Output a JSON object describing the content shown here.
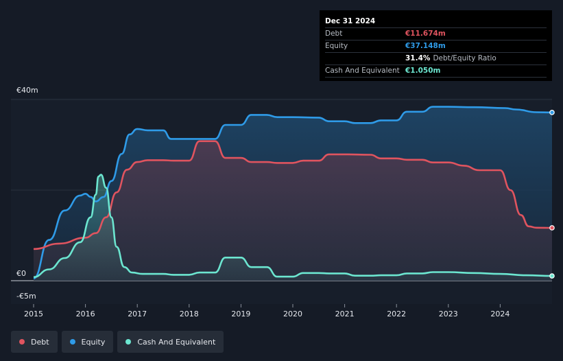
{
  "tooltip": {
    "date": "Dec 31 2024",
    "rows": [
      {
        "label": "Debt",
        "value": "€11.674m",
        "color": "#e0545f"
      },
      {
        "label": "Equity",
        "value": "€37.148m",
        "color": "#2f9be8"
      },
      {
        "label": "",
        "value": "31.4%",
        "desc": "Debt/Equity Ratio",
        "color": "#ffffff"
      },
      {
        "label": "Cash And Equivalent",
        "value": "€1.050m",
        "color": "#6ce6d0"
      }
    ]
  },
  "legend": [
    {
      "label": "Debt",
      "color": "#e0545f"
    },
    {
      "label": "Equity",
      "color": "#2f9be8"
    },
    {
      "label": "Cash And Equivalent",
      "color": "#6ce6d0"
    }
  ],
  "chart_data": {
    "type": "area",
    "y_tick_labels": [
      "€40m",
      "€0",
      "-€5m"
    ],
    "y_ticks": [
      40,
      0,
      -5
    ],
    "ylim": [
      -5,
      40
    ],
    "x_tick_labels": [
      "2015",
      "2016",
      "2017",
      "2018",
      "2019",
      "2020",
      "2021",
      "2022",
      "2023",
      "2024"
    ],
    "x_ticks": [
      2015,
      2016,
      2017,
      2018,
      2019,
      2020,
      2021,
      2022,
      2023,
      2024
    ],
    "xlim": [
      2014.6,
      2025
    ],
    "series": [
      {
        "name": "Equity",
        "color": "#2f9be8",
        "points": [
          [
            2015.0,
            0.5
          ],
          [
            2015.3,
            9
          ],
          [
            2015.6,
            15.5
          ],
          [
            2015.9,
            18.8
          ],
          [
            2016.0,
            19.2
          ],
          [
            2016.1,
            18.5
          ],
          [
            2016.2,
            17.5
          ],
          [
            2016.35,
            18.5
          ],
          [
            2016.5,
            22
          ],
          [
            2016.7,
            28
          ],
          [
            2016.85,
            32.3
          ],
          [
            2017.0,
            33.5
          ],
          [
            2017.2,
            33.2
          ],
          [
            2017.5,
            33.2
          ],
          [
            2017.65,
            31.3
          ],
          [
            2018.0,
            31.3
          ],
          [
            2018.2,
            31.3
          ],
          [
            2018.5,
            31.3
          ],
          [
            2018.7,
            34.4
          ],
          [
            2019.0,
            34.4
          ],
          [
            2019.2,
            36.6
          ],
          [
            2019.5,
            36.6
          ],
          [
            2019.7,
            36.1
          ],
          [
            2020.0,
            36.1
          ],
          [
            2020.5,
            36.0
          ],
          [
            2020.7,
            35.2
          ],
          [
            2021.0,
            35.2
          ],
          [
            2021.2,
            34.8
          ],
          [
            2021.5,
            34.8
          ],
          [
            2021.7,
            35.4
          ],
          [
            2022.0,
            35.4
          ],
          [
            2022.2,
            37.3
          ],
          [
            2022.5,
            37.3
          ],
          [
            2022.7,
            38.4
          ],
          [
            2023.0,
            38.4
          ],
          [
            2023.5,
            38.3
          ],
          [
            2024.1,
            38.1
          ],
          [
            2024.3,
            37.8
          ],
          [
            2024.7,
            37.2
          ],
          [
            2025.0,
            37.148
          ]
        ]
      },
      {
        "name": "Debt",
        "color": "#e0545f",
        "points": [
          [
            2015.0,
            7
          ],
          [
            2015.5,
            8.2
          ],
          [
            2016.0,
            9.5
          ],
          [
            2016.2,
            10.5
          ],
          [
            2016.4,
            14
          ],
          [
            2016.6,
            19.5
          ],
          [
            2016.8,
            24.5
          ],
          [
            2017.0,
            26.2
          ],
          [
            2017.2,
            26.6
          ],
          [
            2017.5,
            26.6
          ],
          [
            2017.7,
            26.5
          ],
          [
            2018.0,
            26.5
          ],
          [
            2018.2,
            30.8
          ],
          [
            2018.5,
            30.8
          ],
          [
            2018.7,
            27.1
          ],
          [
            2019.0,
            27.1
          ],
          [
            2019.2,
            26.2
          ],
          [
            2019.5,
            26.2
          ],
          [
            2019.7,
            26.0
          ],
          [
            2020.0,
            26.0
          ],
          [
            2020.2,
            26.5
          ],
          [
            2020.5,
            26.5
          ],
          [
            2020.7,
            27.9
          ],
          [
            2021.0,
            27.9
          ],
          [
            2021.5,
            27.8
          ],
          [
            2021.7,
            27.0
          ],
          [
            2022.0,
            27.0
          ],
          [
            2022.2,
            26.7
          ],
          [
            2022.5,
            26.7
          ],
          [
            2022.7,
            26.1
          ],
          [
            2023.0,
            26.1
          ],
          [
            2023.3,
            25.4
          ],
          [
            2023.6,
            24.4
          ],
          [
            2024.0,
            24.4
          ],
          [
            2024.2,
            20
          ],
          [
            2024.4,
            14.5
          ],
          [
            2024.55,
            12
          ],
          [
            2024.7,
            11.7
          ],
          [
            2025.0,
            11.674
          ]
        ]
      },
      {
        "name": "Cash And Equivalent",
        "color": "#6ce6d0",
        "points": [
          [
            2015.0,
            0.8
          ],
          [
            2015.3,
            2.5
          ],
          [
            2015.6,
            5
          ],
          [
            2015.9,
            8.5
          ],
          [
            2016.1,
            14
          ],
          [
            2016.2,
            19
          ],
          [
            2016.25,
            23
          ],
          [
            2016.3,
            23.4
          ],
          [
            2016.4,
            20.5
          ],
          [
            2016.5,
            14
          ],
          [
            2016.6,
            7.5
          ],
          [
            2016.75,
            3
          ],
          [
            2016.9,
            1.8
          ],
          [
            2017.1,
            1.5
          ],
          [
            2017.5,
            1.5
          ],
          [
            2017.7,
            1.3
          ],
          [
            2018.0,
            1.3
          ],
          [
            2018.2,
            1.8
          ],
          [
            2018.5,
            1.8
          ],
          [
            2018.7,
            5.1
          ],
          [
            2019.0,
            5.1
          ],
          [
            2019.2,
            3
          ],
          [
            2019.5,
            3
          ],
          [
            2019.7,
            0.9
          ],
          [
            2020.0,
            0.9
          ],
          [
            2020.2,
            1.7
          ],
          [
            2020.5,
            1.7
          ],
          [
            2020.7,
            1.6
          ],
          [
            2021.0,
            1.6
          ],
          [
            2021.2,
            1.1
          ],
          [
            2021.5,
            1.1
          ],
          [
            2021.7,
            1.2
          ],
          [
            2022.0,
            1.2
          ],
          [
            2022.2,
            1.6
          ],
          [
            2022.5,
            1.6
          ],
          [
            2022.7,
            1.9
          ],
          [
            2023.0,
            1.9
          ],
          [
            2023.5,
            1.7
          ],
          [
            2024.0,
            1.5
          ],
          [
            2024.5,
            1.2
          ],
          [
            2025.0,
            1.05
          ]
        ]
      }
    ],
    "grid": true,
    "legend_position": "bottom-left"
  }
}
